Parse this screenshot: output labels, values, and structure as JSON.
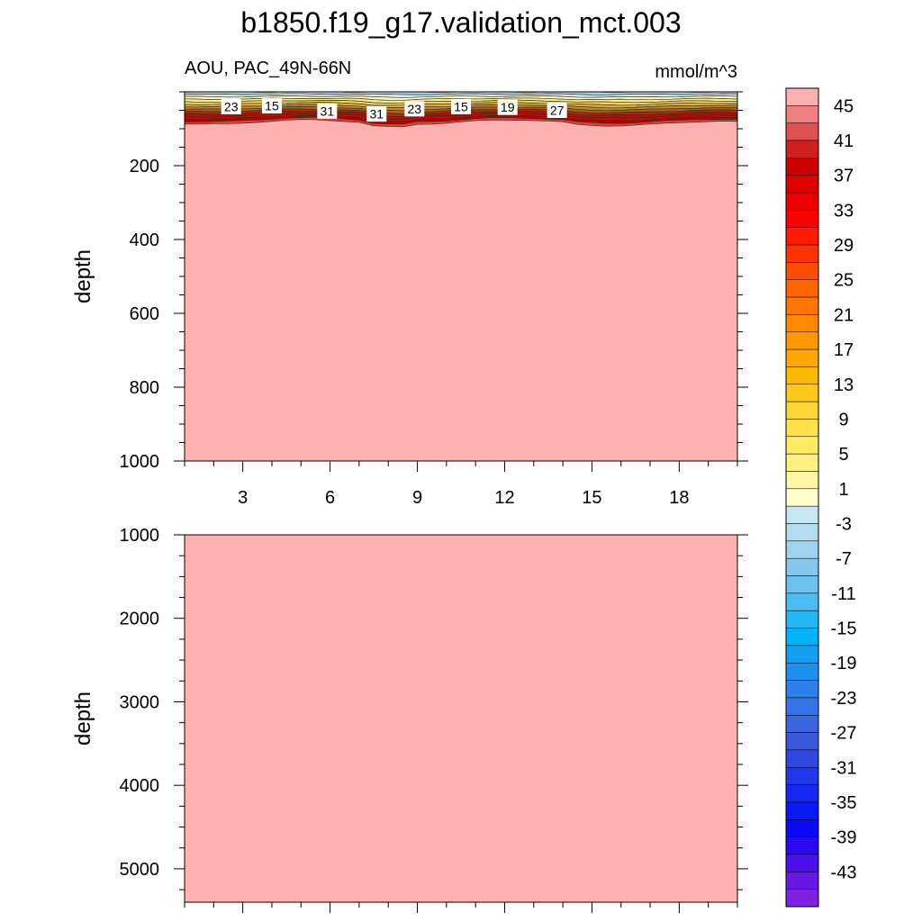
{
  "title": "b1850.f19_g17.validation_mct.003",
  "panel_top": {
    "left_label": "AOU, PAC_49N-66N",
    "right_label": "mmol/m^3",
    "ylabel": "depth"
  },
  "panel_bottom": {
    "ylabel": "depth"
  },
  "colors": {
    "deep_fill": "#ffb0b0",
    "frame": "#000000"
  },
  "chart_data": [
    {
      "type": "heatmap",
      "subtype": "contour",
      "title": "AOU, PAC_49N-66N",
      "units": "mmol/m^3",
      "ylabel": "depth",
      "xlim": [
        1,
        20
      ],
      "ylim": [
        0,
        1000
      ],
      "y_inverted": true,
      "x_ticks": [
        3,
        6,
        9,
        12,
        15,
        18
      ],
      "x_tick_labels": [
        "3",
        "6",
        "9",
        "12",
        "15",
        "18"
      ],
      "y_ticks": [
        200,
        400,
        600,
        800,
        1000
      ],
      "y_tick_labels": [
        "200",
        "400",
        "600",
        "800",
        "1000"
      ],
      "contour_labels": [
        {
          "x": 2.6,
          "y": 40,
          "text": "23"
        },
        {
          "x": 4.0,
          "y": 38,
          "text": "15"
        },
        {
          "x": 5.9,
          "y": 52,
          "text": "31"
        },
        {
          "x": 7.6,
          "y": 60,
          "text": "31"
        },
        {
          "x": 8.9,
          "y": 46,
          "text": "23"
        },
        {
          "x": 10.5,
          "y": 40,
          "text": "15"
        },
        {
          "x": 12.1,
          "y": 42,
          "text": "19"
        },
        {
          "x": 13.8,
          "y": 50,
          "text": "27"
        }
      ],
      "field_note": "values reach the top class (45+) below about 90 m depth"
    },
    {
      "type": "heatmap",
      "subtype": "contour",
      "ylabel": "depth",
      "xlim": [
        1,
        20
      ],
      "ylim": [
        1000,
        5400
      ],
      "y_inverted": true,
      "y_ticks": [
        1000,
        2000,
        3000,
        4000,
        5000
      ],
      "y_tick_labels": [
        "1000",
        "2000",
        "3000",
        "4000",
        "5000"
      ]
    }
  ],
  "colorbar": {
    "labels": [
      "45",
      "41",
      "37",
      "33",
      "29",
      "25",
      "21",
      "17",
      "13",
      "9",
      "5",
      "1",
      "-3",
      "-7",
      "-11",
      "-15",
      "-19",
      "-23",
      "-27",
      "-31",
      "-35",
      "-39",
      "-43"
    ],
    "colors": [
      "#ffb0b0",
      "#f08080",
      "#e05050",
      "#d02020",
      "#cc0000",
      "#dd0000",
      "#ee0000",
      "#ff0000",
      "#ff1a00",
      "#ff3300",
      "#ff4d00",
      "#ff6600",
      "#ff7700",
      "#ff8800",
      "#ff9900",
      "#ffa800",
      "#ffb800",
      "#ffc81a",
      "#ffd633",
      "#ffe04d",
      "#ffea66",
      "#fff080",
      "#fff6a6",
      "#ffffcc",
      "#c8e6f2",
      "#b4dcef",
      "#9fd2ec",
      "#86c8ec",
      "#6cc2ee",
      "#4cbcf2",
      "#22b8f6",
      "#00b4f8",
      "#10a0f4",
      "#1e90f0",
      "#2b80ea",
      "#3474e6",
      "#3a66e0",
      "#3a58dc",
      "#2f48e4",
      "#2038ea",
      "#1428f0",
      "#0a18f4",
      "#0a08f4",
      "#2a08f0",
      "#4c10ea",
      "#6818e4",
      "#8020e0"
    ]
  }
}
